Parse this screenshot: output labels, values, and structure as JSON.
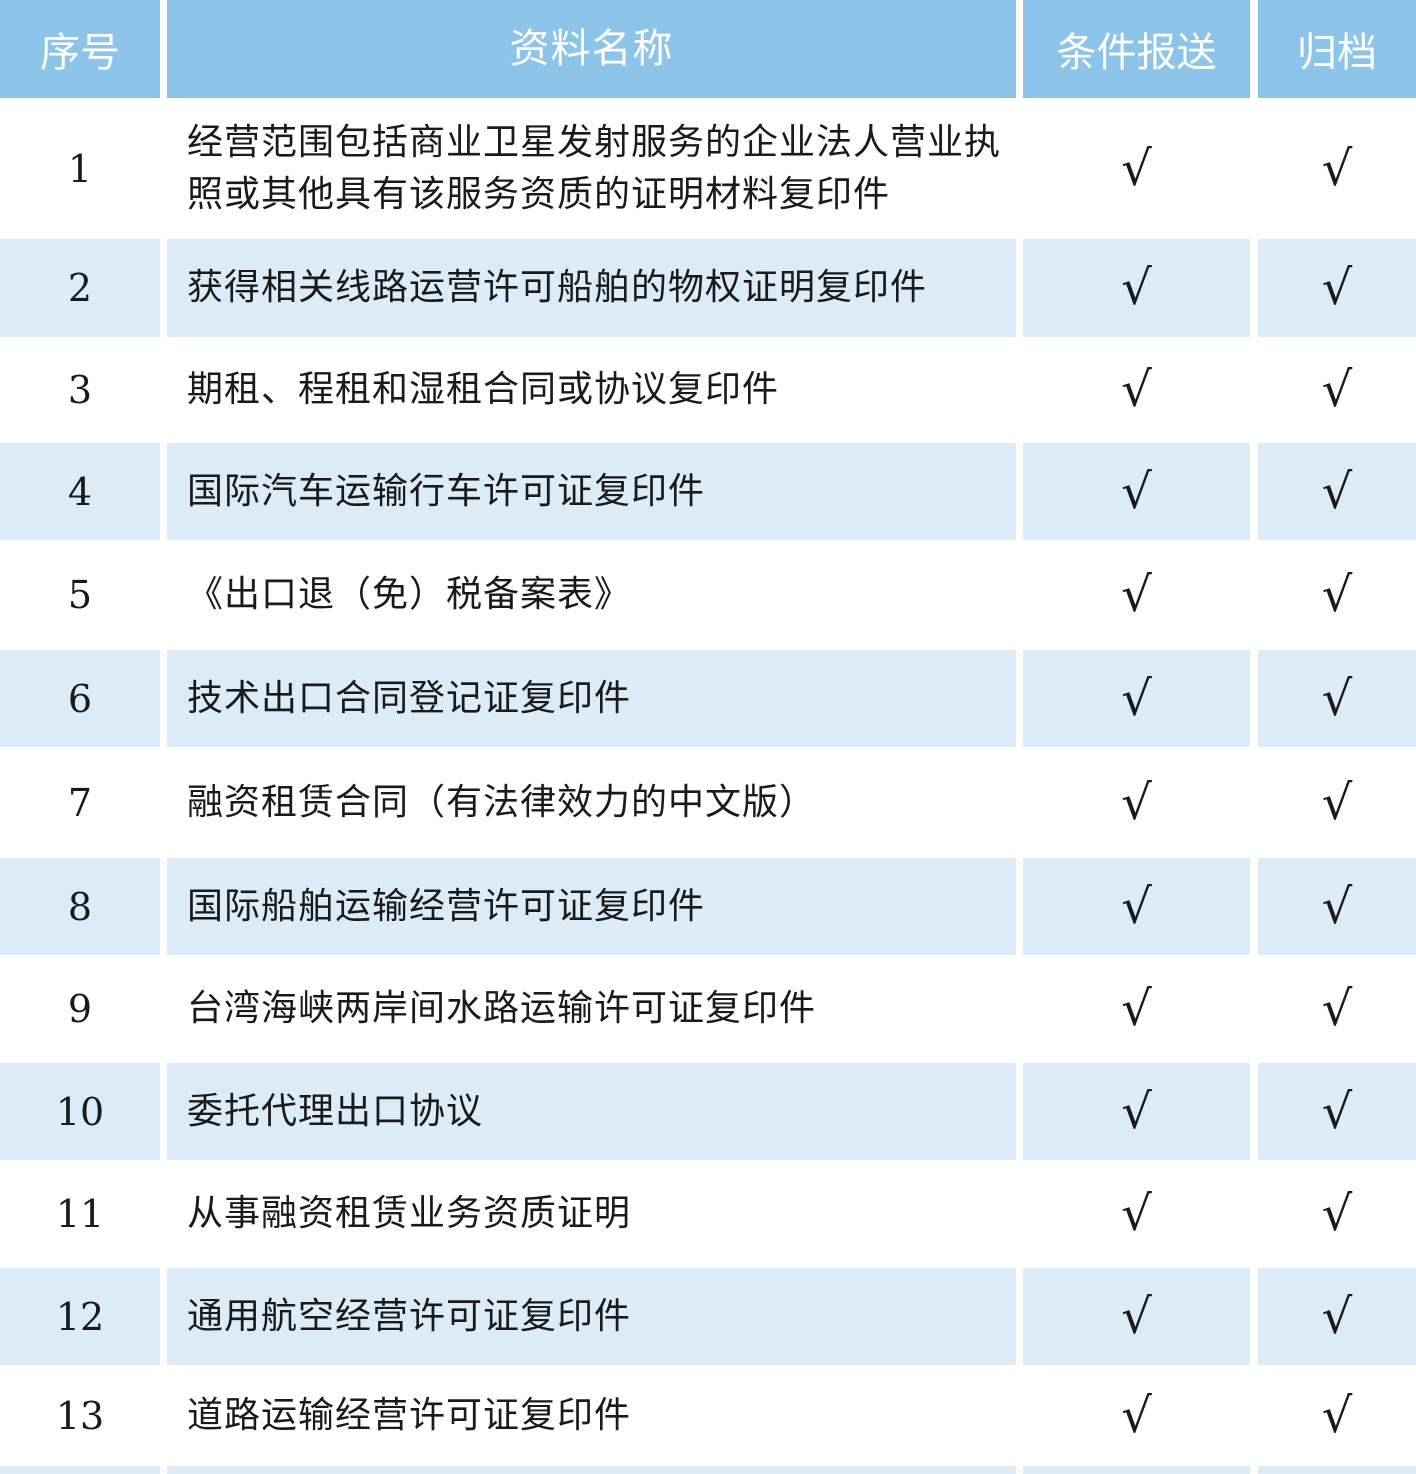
{
  "table": {
    "columns": [
      {
        "key": "no",
        "label": "序号"
      },
      {
        "key": "name",
        "label": "资料名称"
      },
      {
        "key": "submit",
        "label": "条件报送"
      },
      {
        "key": "archive",
        "label": "归档"
      }
    ],
    "check_symbol": "√",
    "rows": [
      {
        "no": "1",
        "name": "经营范围包括商业卫星发射服务的企业法人营业执照或其他具有该服务资质的证明材料复印件",
        "submit": "√",
        "archive": "√"
      },
      {
        "no": "2",
        "name": "获得相关线路运营许可船舶的物权证明复印件",
        "submit": "√",
        "archive": "√"
      },
      {
        "no": "3",
        "name": "期租、程租和湿租合同或协议复印件",
        "submit": "√",
        "archive": "√"
      },
      {
        "no": "4",
        "name": "国际汽车运输行车许可证复印件",
        "submit": "√",
        "archive": "√"
      },
      {
        "no": "5",
        "name": "《出口退（免）税备案表》",
        "submit": "√",
        "archive": "√"
      },
      {
        "no": "6",
        "name": "技术出口合同登记证复印件",
        "submit": "√",
        "archive": "√"
      },
      {
        "no": "7",
        "name": "融资租赁合同（有法律效力的中文版）",
        "submit": "√",
        "archive": "√"
      },
      {
        "no": "8",
        "name": "国际船舶运输经营许可证复印件",
        "submit": "√",
        "archive": "√"
      },
      {
        "no": "9",
        "name": "台湾海峡两岸间水路运输许可证复印件",
        "submit": "√",
        "archive": "√"
      },
      {
        "no": "10",
        "name": "委托代理出口协议",
        "submit": "√",
        "archive": "√"
      },
      {
        "no": "11",
        "name": "从事融资租赁业务资质证明",
        "submit": "√",
        "archive": "√"
      },
      {
        "no": "12",
        "name": "通用航空经营许可证复印件",
        "submit": "√",
        "archive": "√"
      },
      {
        "no": "13",
        "name": "道路运输经营许可证复印件",
        "submit": "√",
        "archive": "√"
      }
    ],
    "colors": {
      "header_bg": "#8cc5e9",
      "row_alt_bg": "#dcebf8",
      "header_text": "#ffffff",
      "body_text": "#1a1a1a"
    }
  }
}
